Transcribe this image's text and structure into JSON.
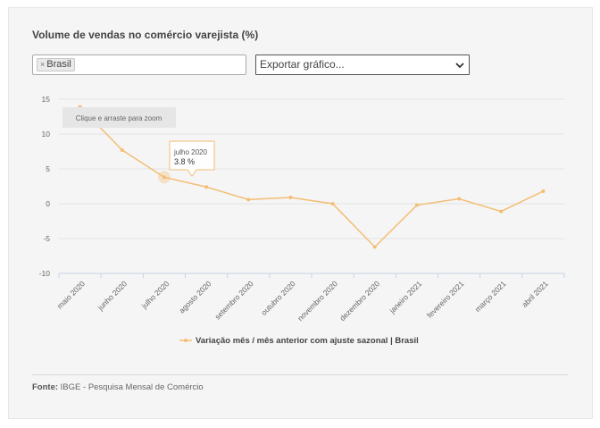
{
  "title": "Volume de vendas no comércio varejista (%)",
  "filter": {
    "tag": "Brasil",
    "remove_icon": "×"
  },
  "export": {
    "label": "Exportar gráfico..."
  },
  "zoom_hint": "Clique e arraste para zoom",
  "tooltip": {
    "date": "julho 2020",
    "value": "3.8 %"
  },
  "source": {
    "label": "Fonte:",
    "text": "IBGE - Pesquisa Mensal de Comércio"
  },
  "colors": {
    "series": "#f3be74",
    "panel": "#f5f5f5"
  },
  "chart_data": {
    "type": "line",
    "categories": [
      "maio 2020",
      "junho 2020",
      "julho 2020",
      "agosto 2020",
      "setembro 2020",
      "outubro 2020",
      "novembro 2020",
      "dezembro 2020",
      "janeiro 2021",
      "fevereiro 2021",
      "março 2021",
      "abril 2021"
    ],
    "series": [
      {
        "name": "Variação mês / mês anterior com ajuste sazonal | Brasil",
        "values": [
          13.9,
          7.7,
          3.8,
          2.4,
          0.6,
          0.9,
          0.0,
          -6.2,
          -0.2,
          0.7,
          -1.1,
          1.8
        ]
      }
    ],
    "yticks": [
      15,
      10,
      5,
      0,
      -5,
      -10
    ],
    "ylim": [
      -10,
      15
    ],
    "grid": true,
    "legend": "bottom"
  }
}
